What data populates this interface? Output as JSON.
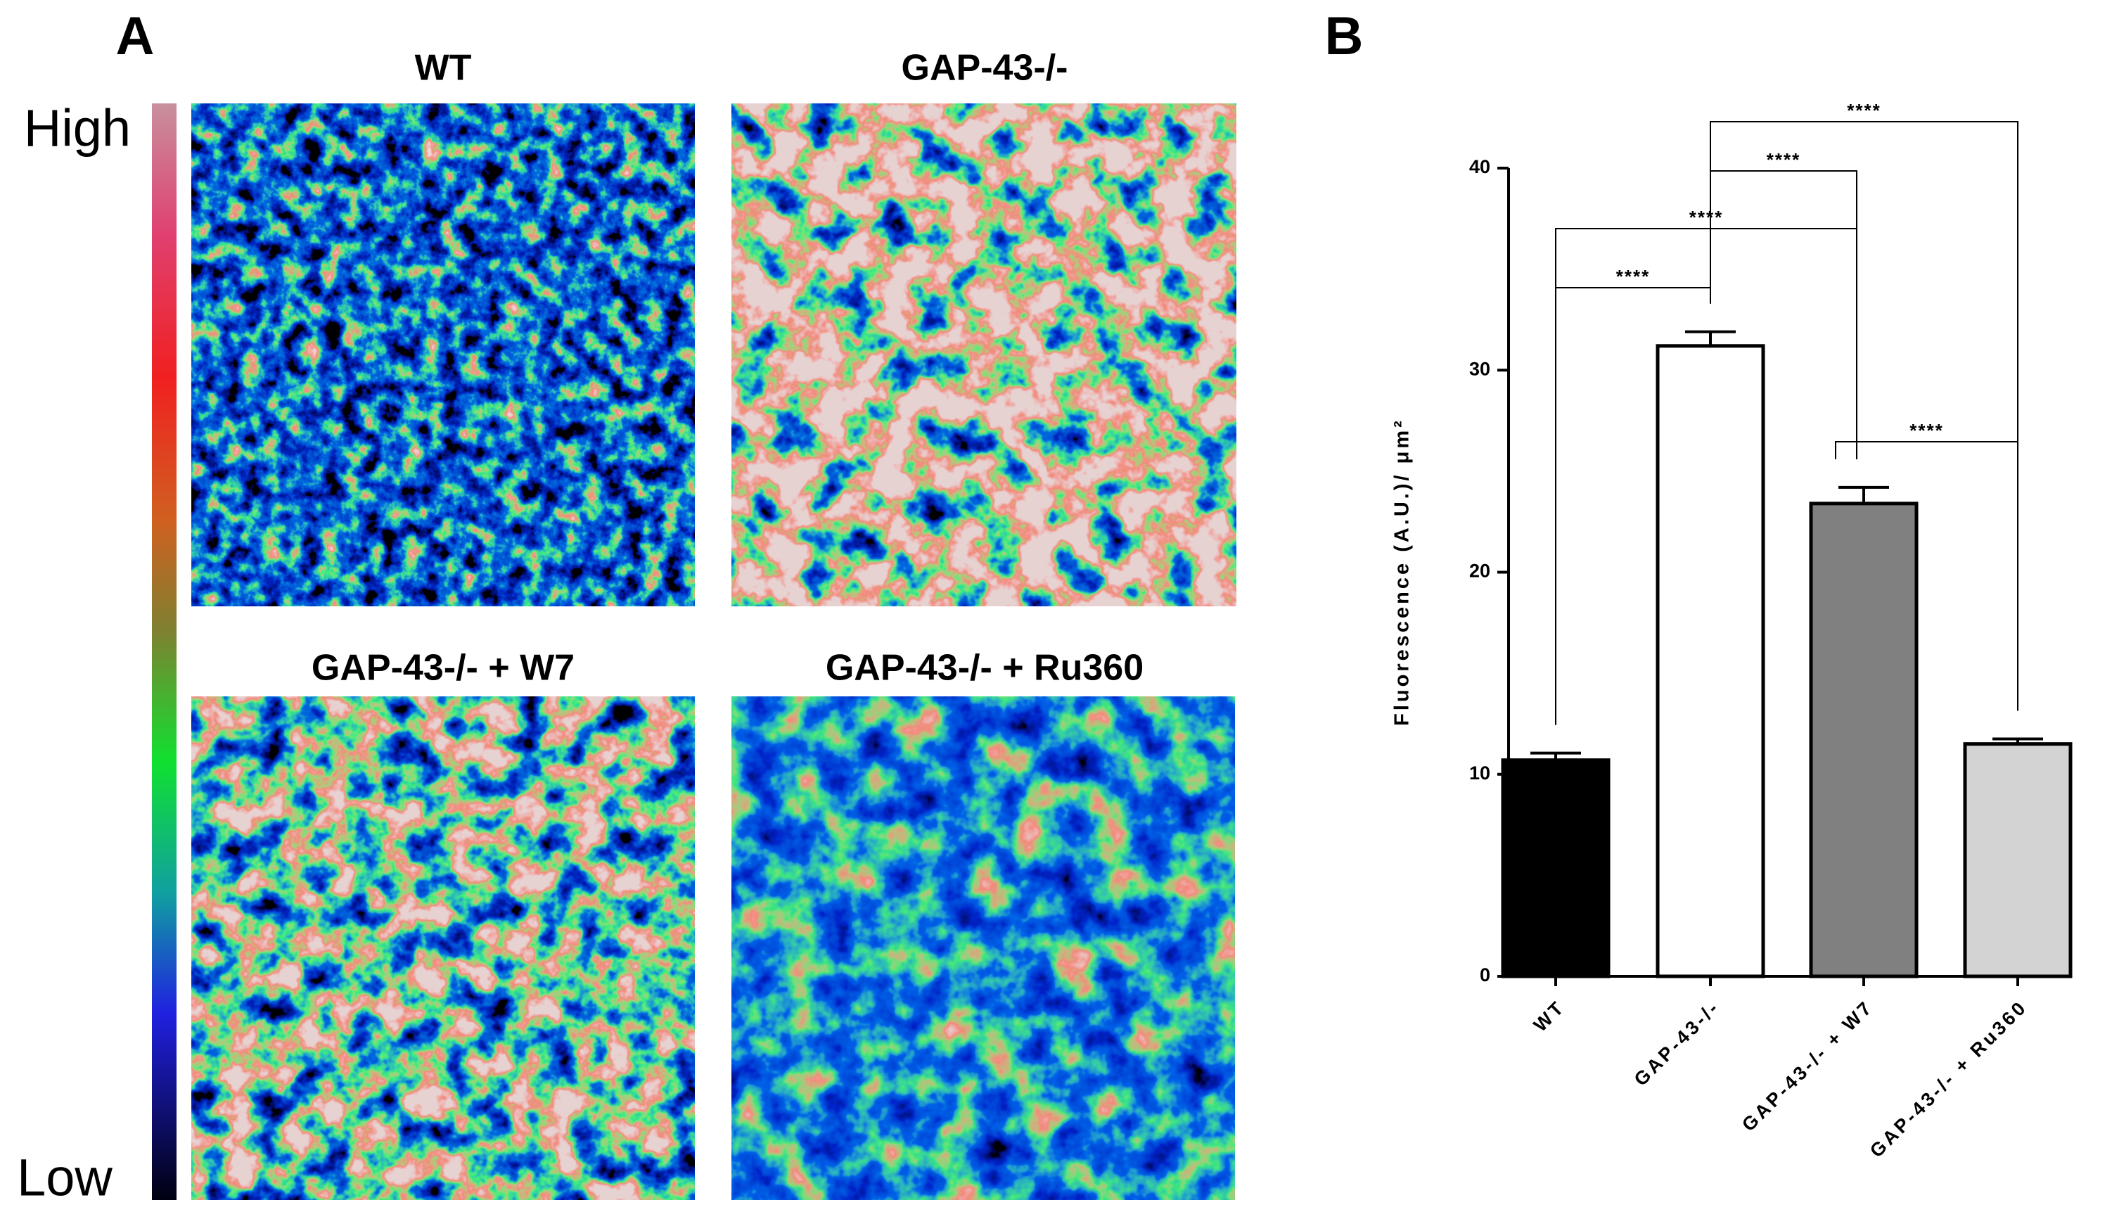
{
  "panel_a": {
    "label": "A",
    "scale_high": "High",
    "scale_low": "Low",
    "images": [
      {
        "title": "WT"
      },
      {
        "title": "GAP-43-/-"
      },
      {
        "title": "GAP-43-/- + W7"
      },
      {
        "title": "GAP-43-/- + Ru360"
      }
    ]
  },
  "panel_b": {
    "label": "B"
  },
  "chart_data": {
    "type": "bar",
    "y_label": "Fluorescence (A.U.)/ μm²",
    "categories": [
      "WT",
      "GAP-43-/-",
      "GAP-43-/- + W7",
      "GAP-43-/- + Ru360"
    ],
    "values": [
      10.7,
      31.2,
      23.4,
      11.5
    ],
    "errors": [
      0.35,
      0.7,
      0.8,
      0.25
    ],
    "colors": [
      "#000000",
      "#ffffff",
      "#808080",
      "#d3d3d3"
    ],
    "ylim": [
      0,
      40
    ],
    "yticks": [
      0,
      10,
      20,
      30,
      40
    ],
    "annotations": [
      {
        "text": "****",
        "pair": [
          0,
          1
        ]
      },
      {
        "text": "****",
        "pair": [
          0,
          2
        ]
      },
      {
        "text": "****",
        "pair": [
          1,
          2
        ]
      },
      {
        "text": "****",
        "pair": [
          1,
          3
        ]
      },
      {
        "text": "****",
        "pair": [
          2,
          3
        ]
      }
    ]
  }
}
